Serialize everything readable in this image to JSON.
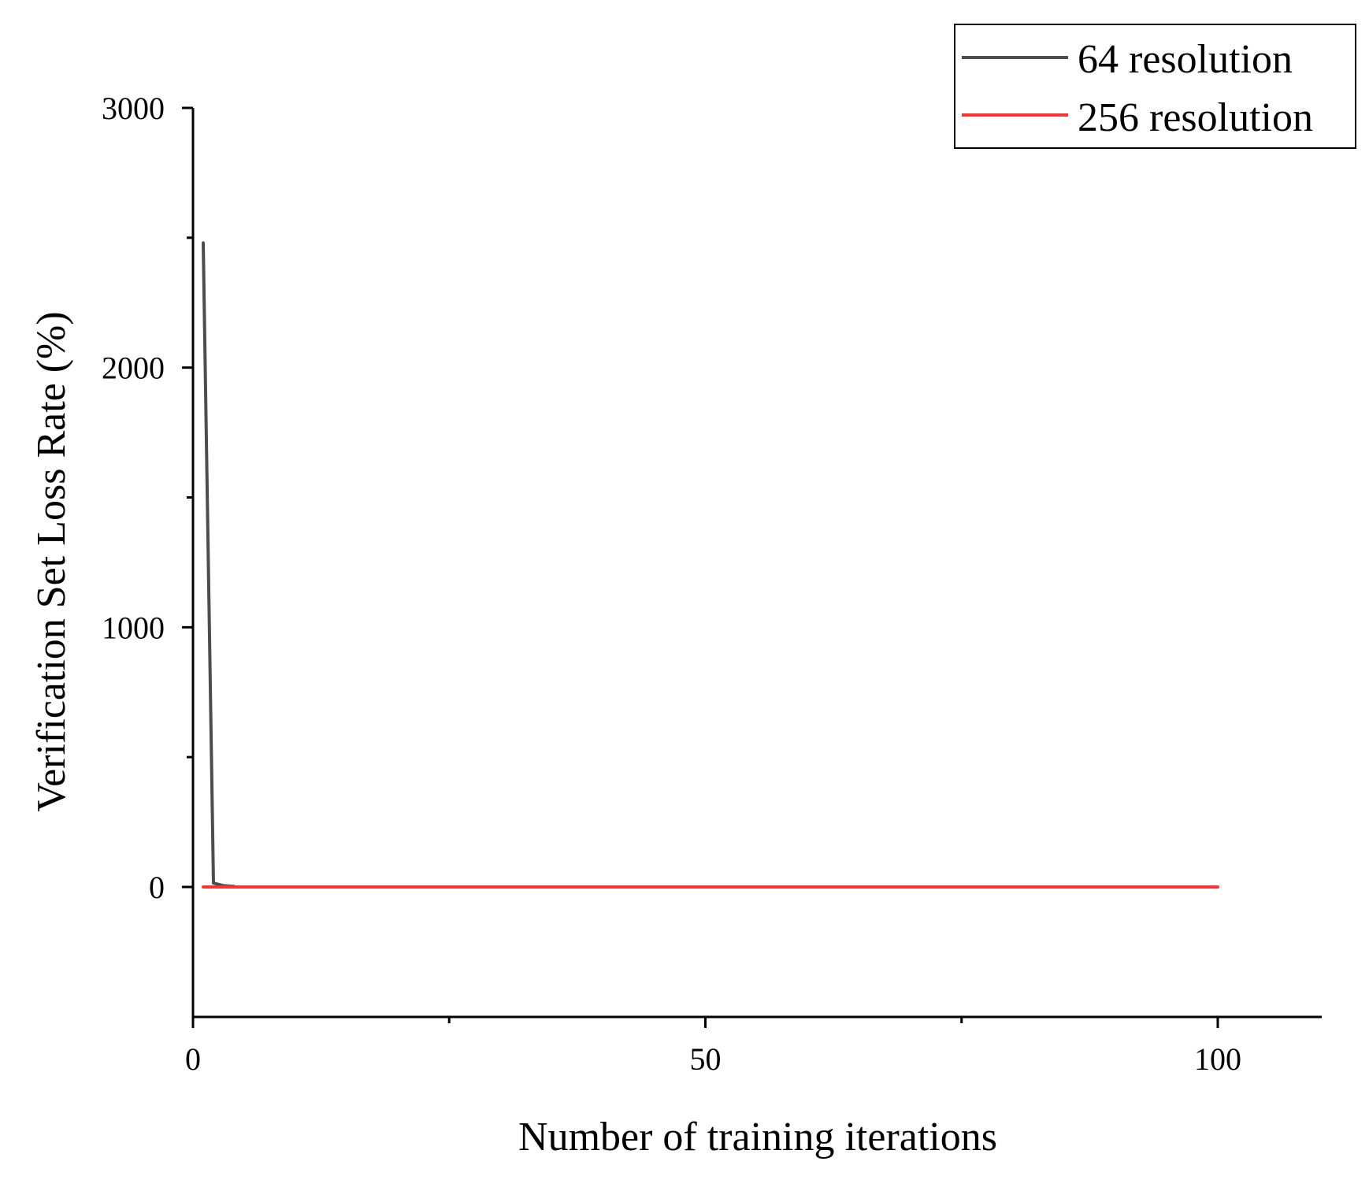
{
  "chart_data": {
    "type": "line",
    "title": "",
    "xlabel": "Number of training iterations",
    "ylabel": "Verification Set Loss Rate (%)",
    "xlim": [
      0,
      110
    ],
    "ylim": [
      -500,
      3000
    ],
    "xticks_major": [
      0,
      50,
      100
    ],
    "xticks_minor": [
      25,
      75
    ],
    "xtick_labels": [
      "0",
      "50",
      "100"
    ],
    "yticks_major": [
      0,
      1000,
      2000,
      3000
    ],
    "yticks_minor": [
      500,
      1500,
      2500
    ],
    "ytick_labels": [
      "0",
      "1000",
      "2000",
      "3000"
    ],
    "legend_position": "top-right",
    "series": [
      {
        "name": "64 resolution",
        "color": "#4d4d4d",
        "x": [
          1,
          2,
          3,
          4
        ],
        "y": [
          2480,
          15,
          5,
          2
        ]
      },
      {
        "name": "256 resolution",
        "color": "#ff3333",
        "x": [
          1,
          100
        ],
        "y": [
          0,
          0
        ]
      }
    ]
  }
}
